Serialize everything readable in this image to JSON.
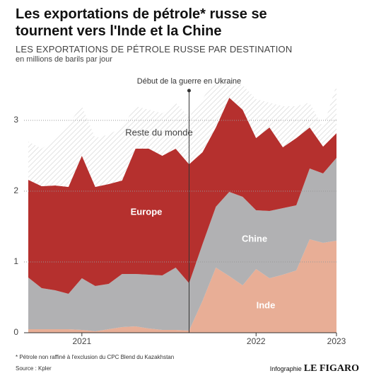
{
  "chart_data": {
    "type": "stacked-area",
    "title": "Les exportations de pétrole* russe se tournent vers l'Inde et la Chine",
    "subtitle": "LES EXPORTATIONS DE PÉTROLE RUSSE PAR DESTINATION",
    "unit": "en millions de barils par jour",
    "note": "* Pétrole non raffiné à l'exclusion du CPC Blend du Kazakhstan",
    "source": "Source : Kpler",
    "credit": "Infographie",
    "brand": "LE FIGARO",
    "annotation": {
      "label": "Début de la guerre en Ukraine",
      "category_index": 12
    },
    "categories": [
      null,
      null,
      null,
      null,
      "2021",
      null,
      null,
      null,
      null,
      null,
      null,
      null,
      null,
      null,
      null,
      null,
      null,
      "2022",
      null,
      null,
      null,
      null,
      null,
      "2023"
    ],
    "ylim": [
      0,
      3.6
    ],
    "yticks": [
      0,
      1,
      2,
      3
    ],
    "grid": true,
    "series": [
      {
        "name": "Inde",
        "color": "#e8ae96",
        "values": [
          0.05,
          0.05,
          0.05,
          0.05,
          0.04,
          0.02,
          0.05,
          0.08,
          0.09,
          0.06,
          0.04,
          0.04,
          0.03,
          0.45,
          0.92,
          0.8,
          0.67,
          0.9,
          0.77,
          0.82,
          0.88,
          1.32,
          1.27,
          1.3
        ]
      },
      {
        "name": "Chine",
        "color": "#b1b1b3",
        "values": [
          0.73,
          0.58,
          0.55,
          0.5,
          0.73,
          0.64,
          0.64,
          0.75,
          0.74,
          0.76,
          0.77,
          0.88,
          0.67,
          0.8,
          0.86,
          1.19,
          1.25,
          0.83,
          0.95,
          0.94,
          0.92,
          1.0,
          0.98,
          1.17
        ]
      },
      {
        "name": "Europe",
        "color": "#b5302e",
        "values": [
          1.38,
          1.44,
          1.48,
          1.51,
          1.73,
          1.4,
          1.41,
          1.32,
          1.77,
          1.78,
          1.69,
          1.68,
          1.68,
          1.3,
          1.12,
          1.33,
          1.23,
          1.02,
          1.18,
          0.86,
          0.95,
          0.58,
          0.38,
          0.35
        ]
      },
      {
        "name": "Reste du monde",
        "color": "#d9d9d9",
        "hatched": true,
        "values": [
          0.54,
          0.53,
          0.67,
          0.89,
          0.7,
          0.69,
          0.7,
          0.75,
          0.6,
          0.55,
          0.6,
          0.65,
          0.67,
          0.75,
          0.7,
          0.23,
          0.35,
          0.55,
          0.35,
          0.58,
          0.45,
          0.35,
          0.27,
          0.68
        ]
      }
    ]
  }
}
